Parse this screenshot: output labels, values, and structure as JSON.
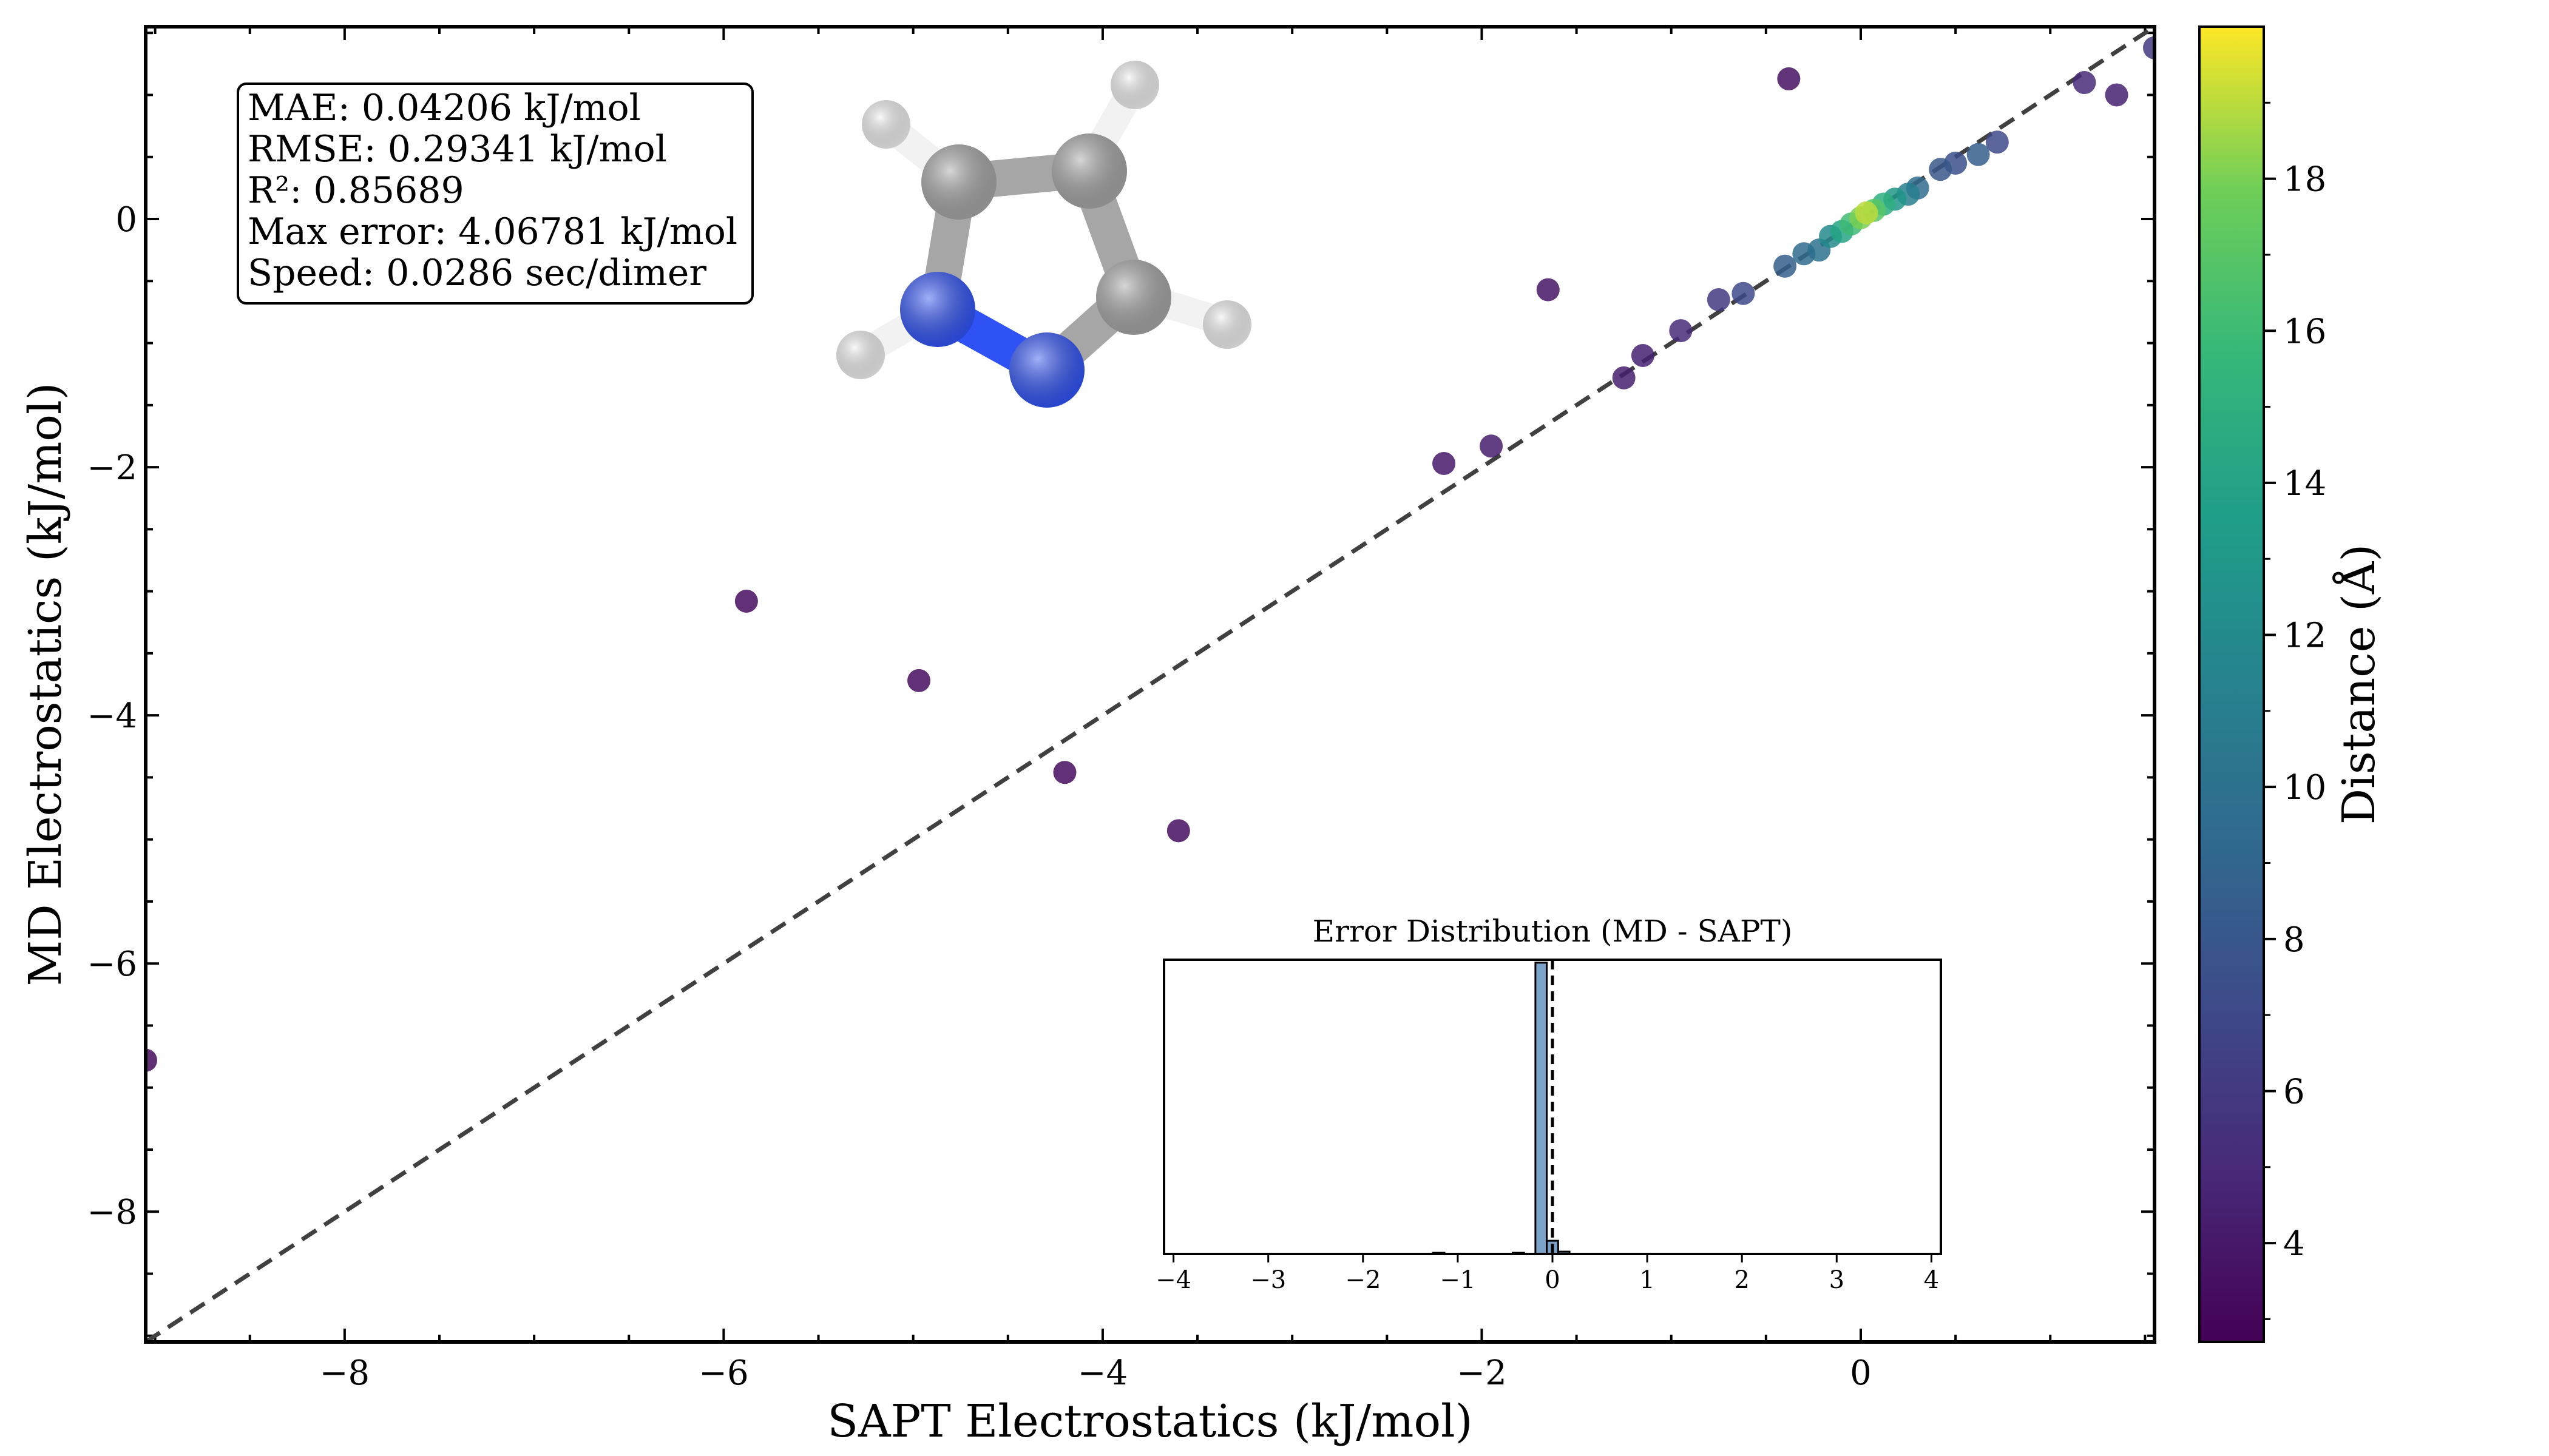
{
  "chart_data": [
    {
      "type": "scatter",
      "xlabel": "SAPT Electrostatics (kJ/mol)",
      "ylabel": "MD Electrostatics (kJ/mol)",
      "xlim": [
        -9.05,
        1.55
      ],
      "ylim": [
        -9.05,
        1.55
      ],
      "x_ticks": [
        -8,
        -6,
        -4,
        -2,
        0
      ],
      "y_ticks": [
        -8,
        -6,
        -4,
        -2,
        0
      ],
      "x_tick_labels": [
        "−8",
        "−6",
        "−4",
        "−2",
        "0"
      ],
      "y_tick_labels": [
        "−8",
        "−6",
        "−4",
        "−2",
        "0"
      ],
      "grid": false,
      "reference_line": {
        "from": [
          -9.05,
          -9.05
        ],
        "to": [
          1.55,
          1.55
        ],
        "style": "dashed",
        "color": "#404040"
      },
      "colormap": "viridis",
      "colorbar": {
        "label": "Distance (Å)",
        "range": [
          2.7,
          20
        ],
        "ticks": [
          4,
          6,
          8,
          10,
          12,
          14,
          16,
          18
        ],
        "tick_labels": [
          "4",
          "6",
          "8",
          "10",
          "12",
          "14",
          "16",
          "18"
        ]
      },
      "points": [
        {
          "x": -9.05,
          "y": -6.78,
          "c": 3.2
        },
        {
          "x": -5.88,
          "y": -3.08,
          "c": 3.3
        },
        {
          "x": -4.97,
          "y": -3.72,
          "c": 3.3
        },
        {
          "x": -4.2,
          "y": -4.46,
          "c": 3.3
        },
        {
          "x": -3.6,
          "y": -4.93,
          "c": 3.4
        },
        {
          "x": -5.22,
          "y": -1.13,
          "c": 3.3
        },
        {
          "x": -2.2,
          "y": -1.97,
          "c": 4.0
        },
        {
          "x": -1.95,
          "y": -1.83,
          "c": 4.2
        },
        {
          "x": -1.65,
          "y": -0.57,
          "c": 3.8
        },
        {
          "x": -0.38,
          "y": 1.13,
          "c": 3.6
        },
        {
          "x": -1.25,
          "y": -1.28,
          "c": 4.3
        },
        {
          "x": -1.15,
          "y": -1.1,
          "c": 4.5
        },
        {
          "x": -0.95,
          "y": -0.9,
          "c": 5.0
        },
        {
          "x": -0.75,
          "y": -0.65,
          "c": 6.0
        },
        {
          "x": -0.62,
          "y": -0.6,
          "c": 7.0
        },
        {
          "x": -0.4,
          "y": -0.38,
          "c": 8.5
        },
        {
          "x": -0.3,
          "y": -0.28,
          "c": 9.5
        },
        {
          "x": -0.22,
          "y": -0.25,
          "c": 10.0
        },
        {
          "x": -0.16,
          "y": -0.14,
          "c": 12.0
        },
        {
          "x": -0.1,
          "y": -0.1,
          "c": 14.0
        },
        {
          "x": -0.05,
          "y": -0.04,
          "c": 16.0
        },
        {
          "x": 0.0,
          "y": 0.01,
          "c": 18.0
        },
        {
          "x": 0.03,
          "y": 0.05,
          "c": 19.0
        },
        {
          "x": 0.07,
          "y": 0.07,
          "c": 17.0
        },
        {
          "x": 0.12,
          "y": 0.12,
          "c": 15.0
        },
        {
          "x": 0.18,
          "y": 0.16,
          "c": 13.0
        },
        {
          "x": 0.25,
          "y": 0.2,
          "c": 11.0
        },
        {
          "x": 0.3,
          "y": 0.25,
          "c": 9.5
        },
        {
          "x": 0.42,
          "y": 0.4,
          "c": 8.0
        },
        {
          "x": 0.5,
          "y": 0.45,
          "c": 7.5
        },
        {
          "x": 0.62,
          "y": 0.52,
          "c": 8.5
        },
        {
          "x": 0.72,
          "y": 0.62,
          "c": 7.0
        },
        {
          "x": 1.18,
          "y": 1.1,
          "c": 5.0
        },
        {
          "x": 1.35,
          "y": 1.0,
          "c": 4.5
        },
        {
          "x": 1.55,
          "y": 1.38,
          "c": 6.0
        }
      ],
      "stats": [
        "MAE: 0.04206 kJ/mol",
        "RMSE: 0.29341 kJ/mol",
        "R²: 0.85689",
        "Max error: 4.06781 kJ/mol",
        "Speed: 0.0286 sec/dimer"
      ]
    },
    {
      "type": "bar",
      "title": "Error Distribution (MD - SAPT)",
      "xlim": [
        -4.1,
        4.1
      ],
      "ylim": [
        0,
        1
      ],
      "x_ticks": [
        -4,
        -3,
        -2,
        -1,
        0,
        1,
        2,
        3,
        4
      ],
      "x_tick_labels": [
        "−4",
        "−3",
        "−2",
        "−1",
        "0",
        "1",
        "2",
        "3",
        "4"
      ],
      "bin_width": 0.12,
      "bins": [
        {
          "x": -1.2,
          "value": 0.004
        },
        {
          "x": -0.36,
          "value": 0.004
        },
        {
          "x": -0.12,
          "value": 0.99
        },
        {
          "x": 0.0,
          "value": 0.045
        },
        {
          "x": 0.12,
          "value": 0.008
        }
      ],
      "mean_line": {
        "x": 0.0,
        "style": "dashed"
      },
      "bar_color": "#7ba3c9"
    }
  ],
  "molecule": {
    "name": "pyrazole",
    "atoms": [
      {
        "element": "H",
        "color": "#f2f2f2"
      },
      {
        "element": "H",
        "color": "#f2f2f2"
      },
      {
        "element": "H",
        "color": "#f2f2f2"
      },
      {
        "element": "H",
        "color": "#f2f2f2"
      },
      {
        "element": "C",
        "color": "#a6a6a6"
      },
      {
        "element": "C",
        "color": "#a6a6a6"
      },
      {
        "element": "C",
        "color": "#a6a6a6"
      },
      {
        "element": "N",
        "color": "#2f52f5"
      },
      {
        "element": "N",
        "color": "#2f52f5"
      }
    ]
  }
}
